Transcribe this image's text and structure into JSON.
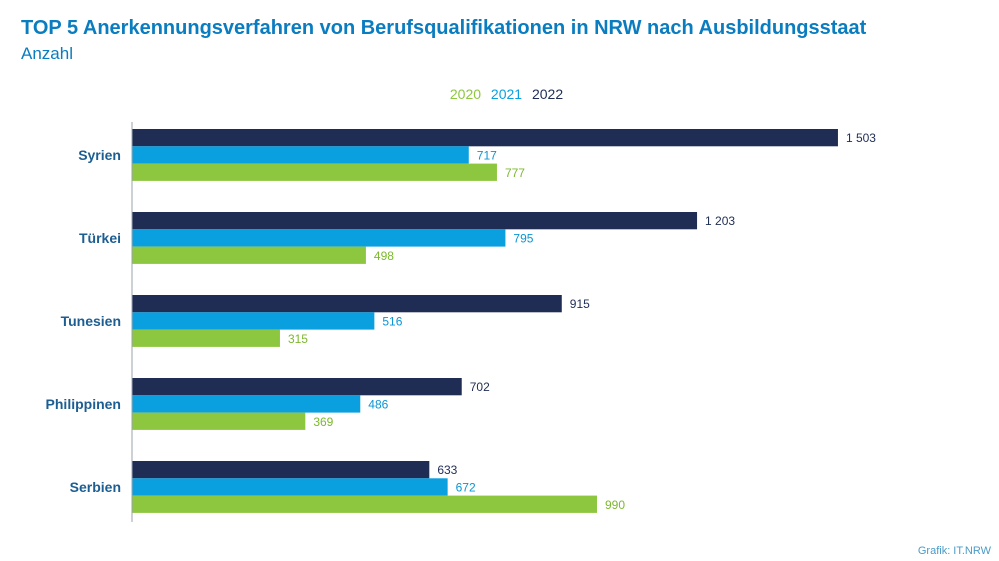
{
  "title": "TOP 5 Anerkennungsverfahren von Berufsqualifikationen in NRW nach Ausbildungsstaat",
  "subtitle": "Anzahl",
  "source": "Grafik: IT.NRW",
  "colors": {
    "title": "#0a7cc0",
    "category_label": "#1d5e92",
    "axis": "#9aa3ad",
    "series_2020": "#8dc63f",
    "series_2021": "#0aa0e0",
    "series_2022": "#1f2d55"
  },
  "chart_data": {
    "type": "bar",
    "orientation": "horizontal",
    "categories": [
      "Syrien",
      "Türkei",
      "Tunesien",
      "Philippinen",
      "Serbien"
    ],
    "series": [
      {
        "name": "2022",
        "color": "#1f2d55",
        "values": [
          1503,
          1203,
          915,
          702,
          633
        ],
        "labels": [
          "1 503",
          "1 203",
          "915",
          "702",
          "633"
        ]
      },
      {
        "name": "2021",
        "color": "#0aa0e0",
        "values": [
          717,
          795,
          516,
          486,
          672
        ],
        "labels": [
          "717",
          "795",
          "516",
          "486",
          "672"
        ]
      },
      {
        "name": "2020",
        "color": "#8dc63f",
        "values": [
          777,
          498,
          315,
          369,
          990
        ],
        "labels": [
          "777",
          "498",
          "315",
          "369",
          "990"
        ]
      }
    ],
    "legend_order": [
      "2020",
      "2021",
      "2022"
    ],
    "legend_position": "top-center",
    "xlim": [
      0,
      1503
    ],
    "grid": false,
    "data_labels": true
  }
}
